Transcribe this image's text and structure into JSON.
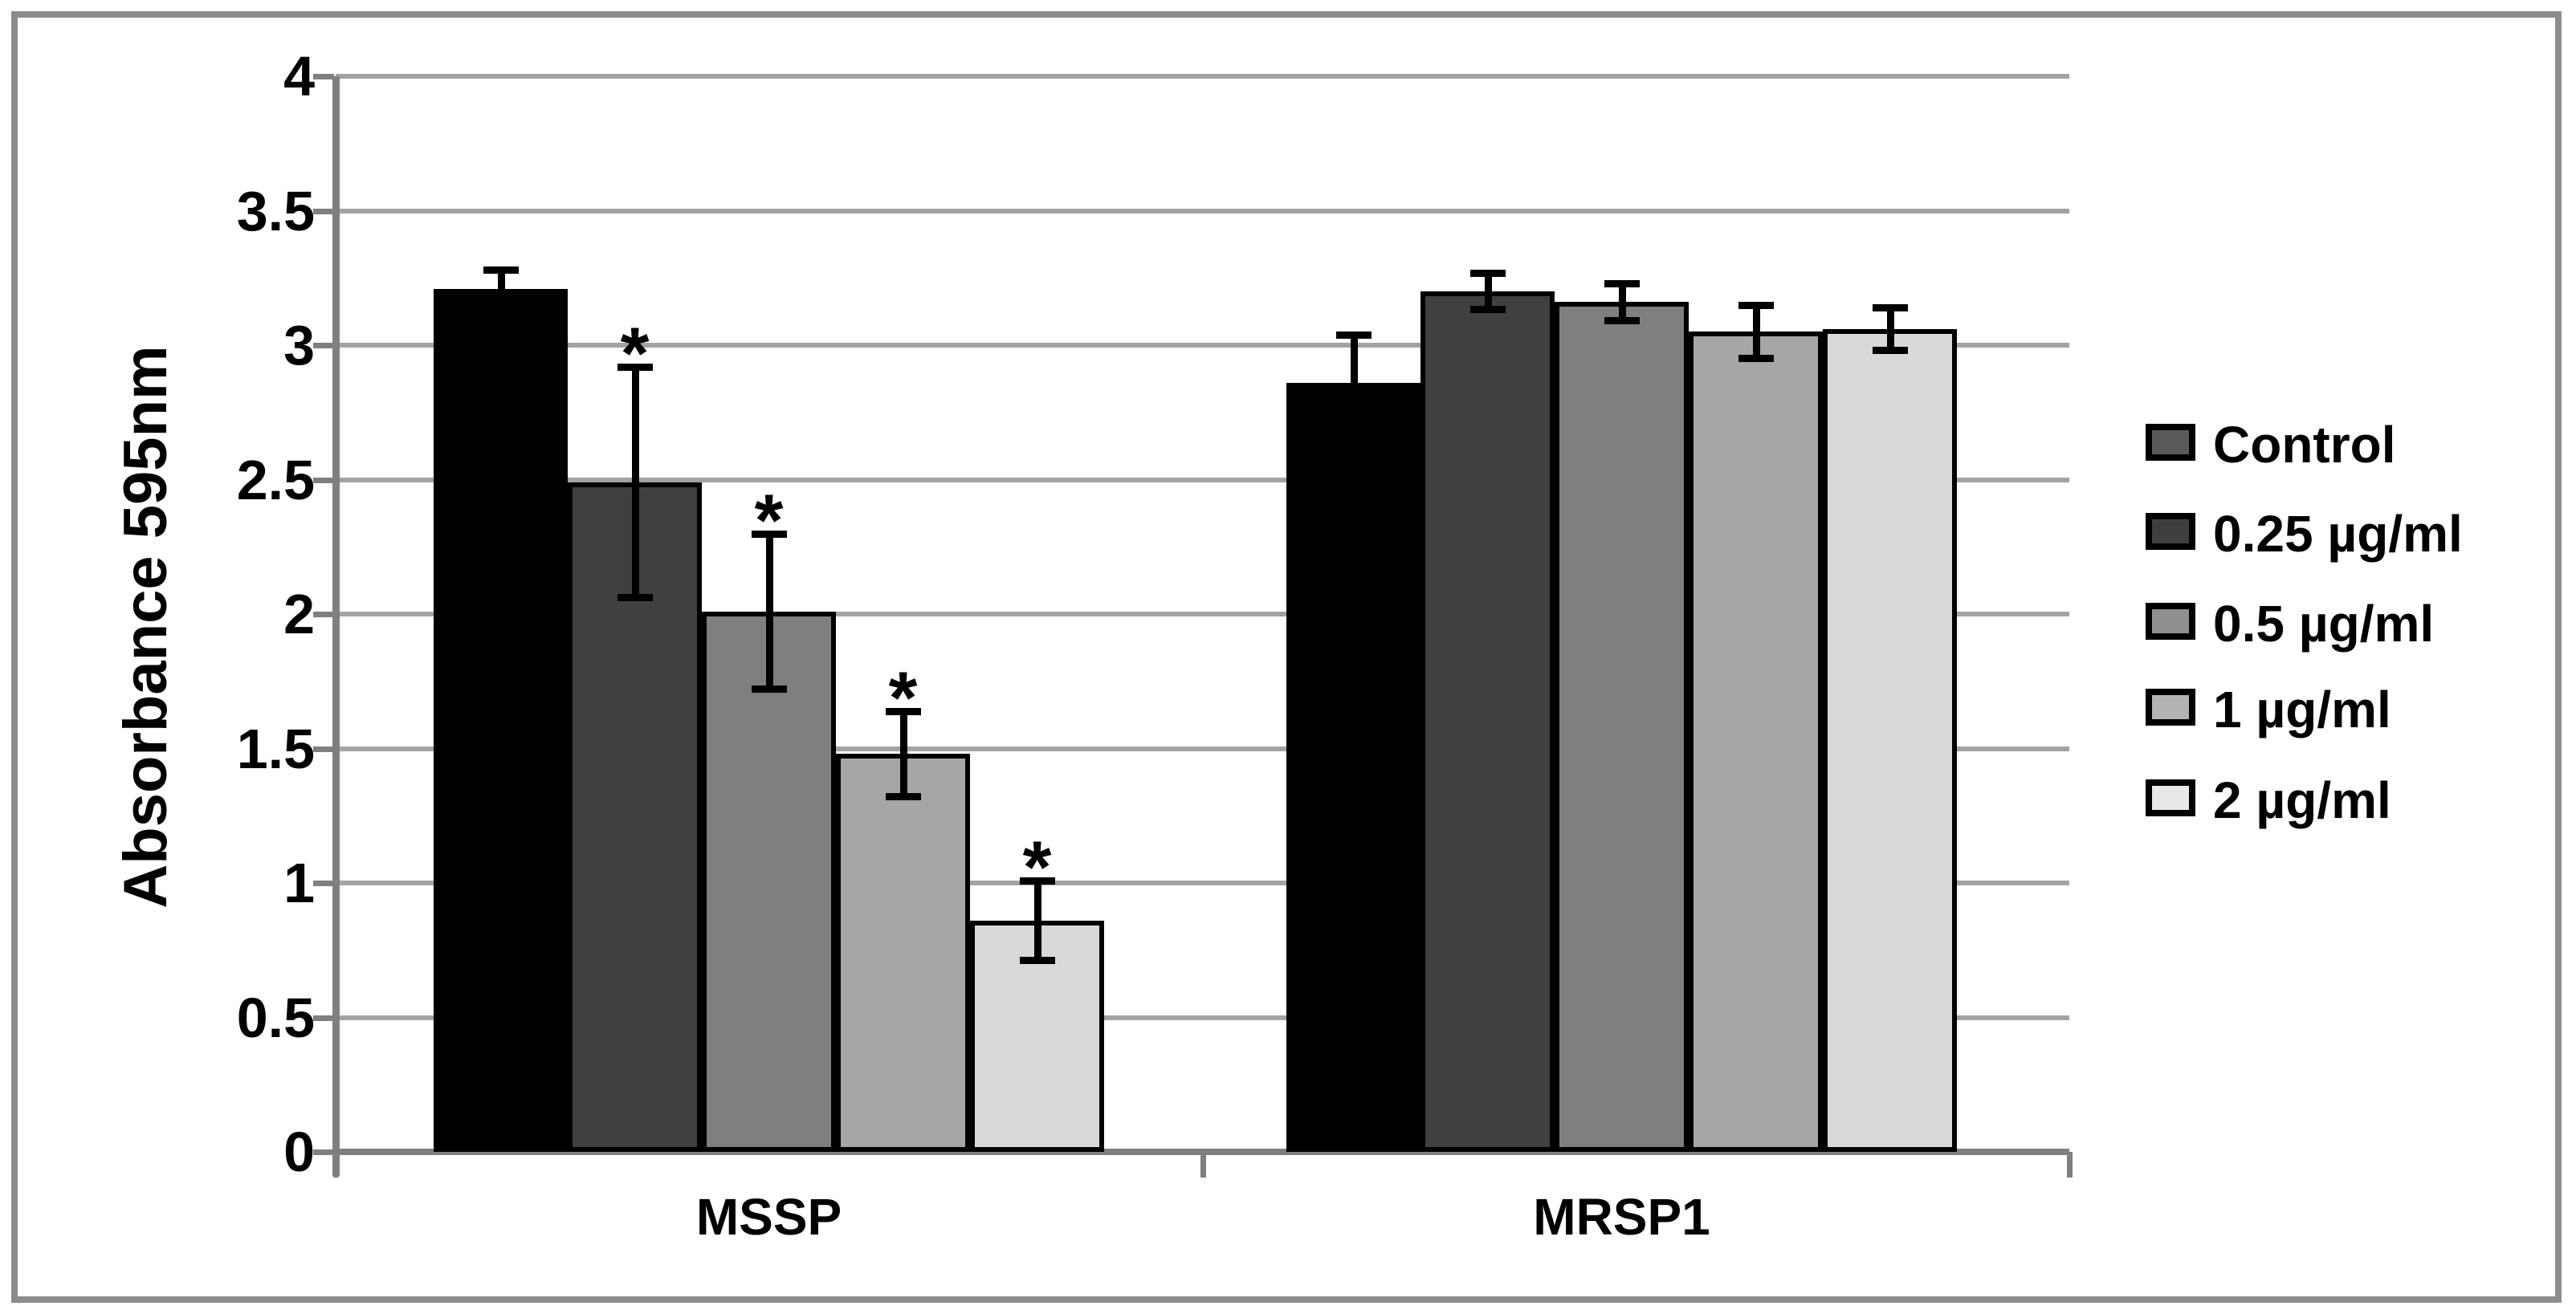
{
  "colors": {
    "frame": "#8c8c8c",
    "axis": "#7f7f7f",
    "gridline": "#a3a3a3",
    "error_bar": "#000000",
    "background": "#ffffff"
  },
  "chart_data": {
    "type": "bar",
    "title": "",
    "xlabel": "",
    "ylabel": "Absorbance 595nm",
    "categories": [
      "MSSP",
      "MRSP1"
    ],
    "series": [
      {
        "name": "Control",
        "bar_color": "#000000",
        "legend_color": "#595959",
        "values": [
          3.21,
          2.86
        ],
        "errors": [
          0.07,
          0.18
        ],
        "significant": [
          false,
          false
        ]
      },
      {
        "name": "0.25 µg/ml",
        "bar_color": "#404040",
        "legend_color": "#3f3f3f",
        "values": [
          2.49,
          3.2
        ],
        "errors": [
          0.43,
          0.07
        ],
        "significant": [
          true,
          false
        ]
      },
      {
        "name": "0.5 µg/ml",
        "bar_color": "#7f7f7f",
        "legend_color": "#8f8f8f",
        "values": [
          2.01,
          3.16
        ],
        "errors": [
          0.29,
          0.07
        ],
        "significant": [
          true,
          false
        ]
      },
      {
        "name": "1 µg/ml",
        "bar_color": "#a6a6a6",
        "legend_color": "#b3b3b3",
        "values": [
          1.48,
          3.05
        ],
        "errors": [
          0.16,
          0.1
        ],
        "significant": [
          true,
          false
        ]
      },
      {
        "name": "2 µg/ml",
        "bar_color": "#d9d9d9",
        "legend_color": "#e8e8e8",
        "values": [
          0.86,
          3.06
        ],
        "errors": [
          0.15,
          0.08
        ],
        "significant": [
          true,
          false
        ]
      }
    ],
    "ylim": [
      0,
      4
    ],
    "ytick_step": 0.5,
    "grid": true,
    "legend_position": "right",
    "significance_marker": "*"
  }
}
